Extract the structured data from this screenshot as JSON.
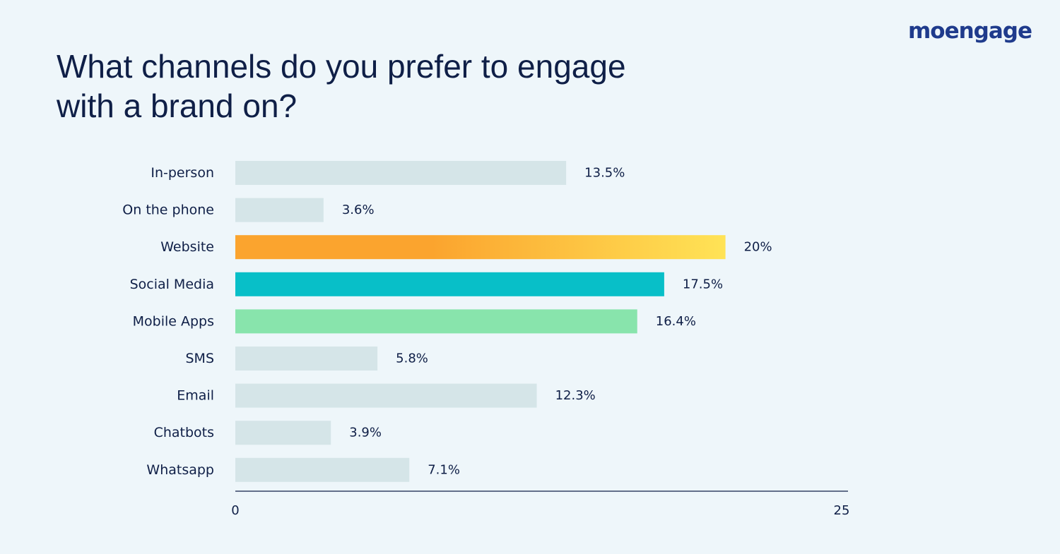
{
  "brand": {
    "logo_text": "moengage"
  },
  "chart_data": {
    "type": "bar",
    "orientation": "horizontal",
    "title": "What channels do you prefer to engage with a brand on?",
    "categories": [
      "In-person",
      "On the phone",
      "Website",
      "Social Media",
      "Mobile Apps",
      "SMS",
      "Email",
      "Chatbots",
      "Whatsapp"
    ],
    "values": [
      13.5,
      3.6,
      20,
      17.5,
      16.4,
      5.8,
      12.3,
      3.9,
      7.1
    ],
    "value_labels": [
      "13.5%",
      "3.6%",
      "20%",
      "17.5%",
      "16.4%",
      "5.8%",
      "12.3%",
      "3.9%",
      "7.1%"
    ],
    "xlim": [
      0,
      25
    ],
    "xticks": [
      "0",
      "25"
    ],
    "grid": false,
    "colors": {
      "default": "#d5e5e8",
      "Website": [
        "#fba42e",
        "#ffe356"
      ],
      "Social Media": "#08bfc8",
      "Mobile Apps": "#88e4ac",
      "axis": "#0f1f47",
      "text": "#0f1f47"
    }
  }
}
